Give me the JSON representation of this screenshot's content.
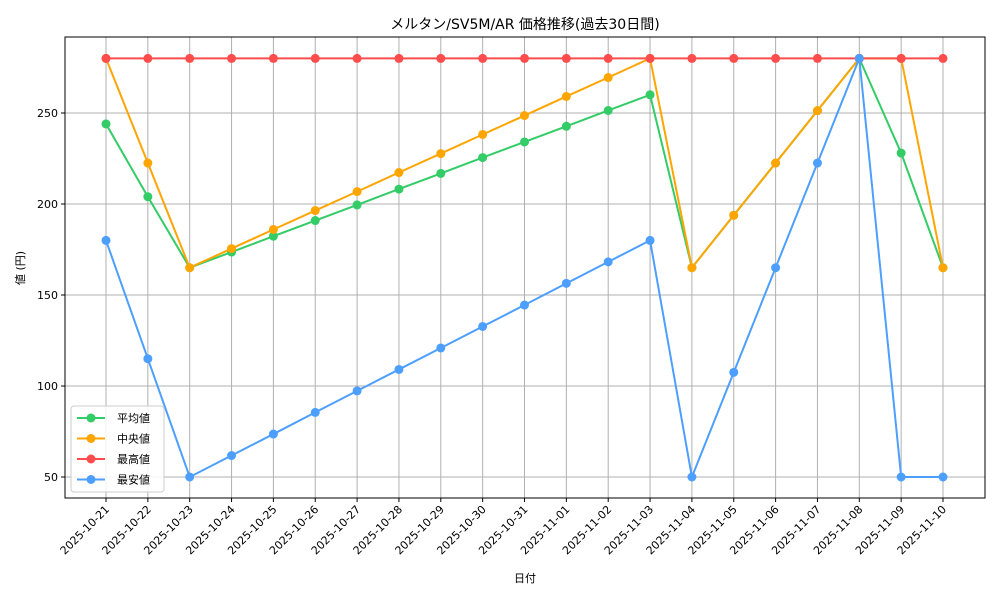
{
  "chart_data": {
    "type": "line",
    "title": "メルタン/SV5M/AR 価格推移(過去30日間)",
    "xlabel": "日付",
    "ylabel": "値 (円)",
    "ylim": [
      39,
      292
    ],
    "yticks": [
      50,
      100,
      150,
      200,
      250
    ],
    "grid": true,
    "legend_position": "lower left",
    "categories": [
      "2025-10-21",
      "2025-10-22",
      "2025-10-23",
      "2025-10-24",
      "2025-10-25",
      "2025-10-26",
      "2025-10-27",
      "2025-10-28",
      "2025-10-29",
      "2025-10-30",
      "2025-10-31",
      "2025-11-01",
      "2025-11-02",
      "2025-11-03",
      "2025-11-04",
      "2025-11-05",
      "2025-11-06",
      "2025-11-07",
      "2025-11-08",
      "2025-11-09",
      "2025-11-10"
    ],
    "series": [
      {
        "name": "平均値",
        "color": "#33cc66",
        "values": [
          244,
          204,
          165,
          173.6,
          182.3,
          190.9,
          199.5,
          208.2,
          216.8,
          225.5,
          234.1,
          242.7,
          251.4,
          260,
          165,
          193.8,
          222.5,
          251.3,
          280,
          228,
          165
        ]
      },
      {
        "name": "中央値",
        "color": "#ffa500",
        "values": [
          280,
          222.5,
          165,
          175.5,
          186,
          196.4,
          206.8,
          217.3,
          227.7,
          238.2,
          248.6,
          259.1,
          269.5,
          280,
          165,
          193.8,
          222.5,
          251.3,
          280,
          280,
          165
        ]
      },
      {
        "name": "最高値",
        "color": "#ff4d4d",
        "values": [
          280,
          280,
          280,
          280,
          280,
          280,
          280,
          280,
          280,
          280,
          280,
          280,
          280,
          280,
          280,
          280,
          280,
          280,
          280,
          280,
          280
        ]
      },
      {
        "name": "最安値",
        "color": "#4d9fff",
        "values": [
          180,
          115,
          50,
          61.8,
          73.6,
          85.5,
          97.3,
          109.1,
          120.9,
          132.7,
          144.5,
          156.4,
          168.2,
          180,
          50,
          107.5,
          165,
          222.5,
          280,
          50,
          50
        ]
      }
    ]
  }
}
